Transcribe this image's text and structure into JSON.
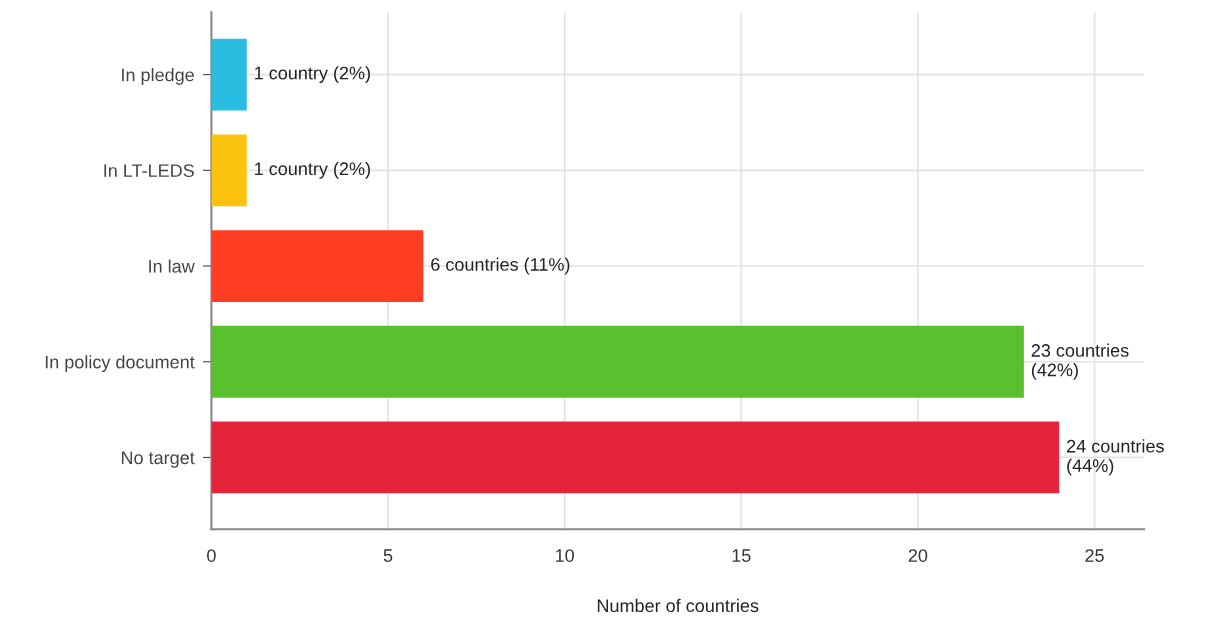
{
  "chart_data": {
    "type": "bar",
    "orientation": "horizontal",
    "xlabel": "Number of countries",
    "categories": [
      "In pledge",
      "In LT-LEDS",
      "In law",
      "In policy document",
      "No target"
    ],
    "values": [
      1,
      1,
      6,
      23,
      24
    ],
    "colors": [
      "#29bde2",
      "#fcc210",
      "#fe3d22",
      "#5ac02e",
      "#e4243b"
    ],
    "value_labels": [
      "1 country (2%)",
      "1 country (2%)",
      "6 countries (11%)",
      "23 countries\n(42%)",
      "24 countries\n(44%)"
    ],
    "xlim": [
      0,
      26.4
    ],
    "xticks": [
      0,
      5,
      10,
      15,
      20,
      25
    ],
    "grid": true
  }
}
